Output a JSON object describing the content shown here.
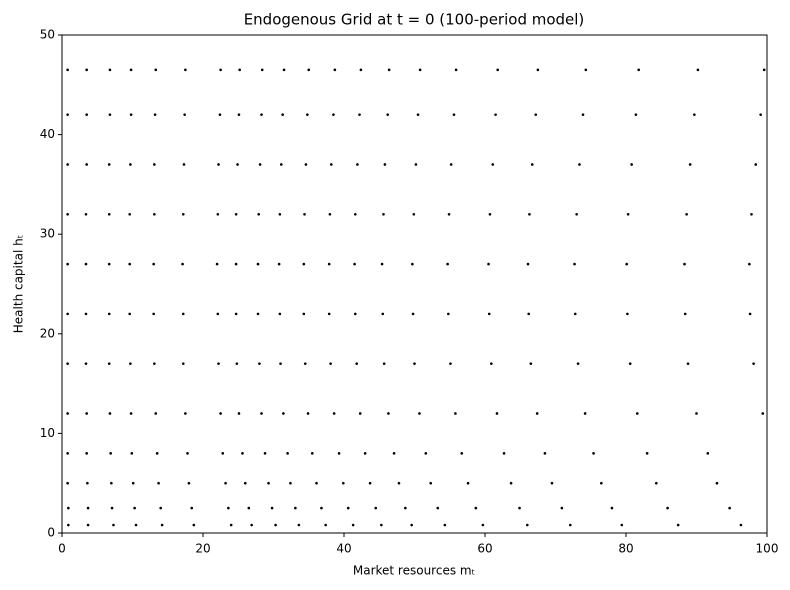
{
  "chart_data": {
    "type": "scatter",
    "title": "Endogenous Grid at t = 0 (100-period model)",
    "xlabel": "Market resources mₜ",
    "ylabel": "Health capital hₜ",
    "color": "#000000",
    "xlim": [
      0,
      100
    ],
    "ylim": [
      0,
      50
    ],
    "xticks": [
      0,
      20,
      40,
      60,
      80,
      100
    ],
    "yticks": [
      0,
      10,
      20,
      30,
      40,
      50
    ],
    "grid": false,
    "x": [
      99.6,
      99.1,
      98.4,
      97.8,
      97.5,
      97.6,
      98.1,
      99.4,
      90.2,
      89.7,
      89.1,
      88.6,
      88.3,
      88.4,
      88.8,
      90.0,
      91.6,
      92.9,
      94.7,
      96.3,
      81.8,
      81.4,
      80.8,
      80.3,
      80.1,
      80.2,
      80.6,
      81.6,
      83.0,
      84.3,
      85.9,
      87.4,
      74.3,
      73.9,
      73.4,
      73.0,
      72.7,
      72.8,
      73.2,
      74.2,
      75.4,
      76.5,
      78.0,
      79.4,
      67.5,
      67.2,
      66.7,
      66.3,
      66.1,
      66.2,
      66.5,
      67.4,
      68.5,
      69.5,
      70.9,
      72.1,
      61.8,
      61.5,
      61.1,
      60.7,
      60.5,
      60.6,
      60.9,
      61.7,
      62.7,
      63.7,
      64.9,
      66.0,
      55.9,
      55.6,
      55.2,
      54.9,
      54.7,
      54.8,
      55.1,
      55.8,
      56.7,
      57.6,
      58.7,
      59.7,
      50.8,
      50.5,
      50.2,
      49.9,
      49.7,
      49.8,
      50.0,
      50.7,
      51.6,
      52.3,
      53.3,
      54.3,
      46.4,
      46.2,
      45.8,
      45.6,
      45.4,
      45.5,
      45.7,
      46.3,
      47.1,
      47.8,
      48.7,
      49.6,
      42.4,
      42.2,
      41.9,
      41.6,
      41.5,
      41.6,
      41.8,
      42.3,
      43.0,
      43.7,
      44.5,
      45.3,
      38.7,
      38.5,
      38.2,
      38.0,
      37.9,
      37.9,
      38.1,
      38.6,
      39.3,
      39.9,
      40.6,
      41.3,
      35.0,
      34.8,
      34.6,
      34.4,
      34.3,
      34.3,
      34.5,
      34.9,
      35.5,
      36.1,
      36.8,
      37.4,
      31.5,
      31.3,
      31.1,
      30.9,
      30.8,
      30.9,
      31.0,
      31.4,
      32.0,
      32.4,
      33.1,
      33.6,
      28.4,
      28.3,
      28.1,
      27.9,
      27.8,
      27.8,
      28.0,
      28.3,
      28.8,
      29.3,
      29.8,
      30.3,
      25.2,
      25.1,
      24.9,
      24.7,
      24.7,
      24.7,
      24.8,
      25.1,
      25.6,
      26.0,
      26.5,
      26.9,
      22.5,
      22.4,
      22.2,
      22.1,
      22.0,
      22.1,
      22.2,
      22.5,
      22.8,
      23.2,
      23.6,
      24.0,
      17.5,
      17.4,
      17.3,
      17.2,
      17.1,
      17.2,
      17.2,
      17.5,
      17.8,
      18.0,
      18.4,
      18.7,
      13.3,
      13.2,
      13.1,
      13.1,
      13.0,
      13.0,
      13.1,
      13.3,
      13.5,
      13.7,
      14.0,
      14.2,
      9.8,
      9.8,
      9.7,
      9.6,
      9.6,
      9.6,
      9.7,
      9.8,
      9.9,
      10.1,
      10.3,
      10.5,
      6.8,
      6.8,
      6.7,
      6.7,
      6.7,
      6.7,
      6.7,
      6.8,
      6.9,
      7.0,
      7.1,
      7.3,
      3.5,
      3.5,
      3.5,
      3.4,
      3.4,
      3.4,
      3.4,
      3.5,
      3.5,
      3.6,
      3.7,
      3.7,
      0.8,
      0.8,
      0.8,
      0.8,
      0.8,
      0.8,
      0.8,
      0.8,
      0.8,
      0.8,
      0.9,
      0.9
    ],
    "y": [
      46.5,
      42,
      37,
      32,
      27,
      22,
      17,
      12,
      46.5,
      42,
      37,
      32,
      27,
      22,
      17,
      12,
      8,
      5,
      2.5,
      0.8,
      46.5,
      42,
      37,
      32,
      27,
      22,
      17,
      12,
      8,
      5,
      2.5,
      0.8,
      46.5,
      42,
      37,
      32,
      27,
      22,
      17,
      12,
      8,
      5,
      2.5,
      0.8,
      46.5,
      42,
      37,
      32,
      27,
      22,
      17,
      12,
      8,
      5,
      2.5,
      0.8,
      46.5,
      42,
      37,
      32,
      27,
      22,
      17,
      12,
      8,
      5,
      2.5,
      0.8,
      46.5,
      42,
      37,
      32,
      27,
      22,
      17,
      12,
      8,
      5,
      2.5,
      0.8,
      46.5,
      42,
      37,
      32,
      27,
      22,
      17,
      12,
      8,
      5,
      2.5,
      0.8,
      46.5,
      42,
      37,
      32,
      27,
      22,
      17,
      12,
      8,
      5,
      2.5,
      0.8,
      46.5,
      42,
      37,
      32,
      27,
      22,
      17,
      12,
      8,
      5,
      2.5,
      0.8,
      46.5,
      42,
      37,
      32,
      27,
      22,
      17,
      12,
      8,
      5,
      2.5,
      0.8,
      46.5,
      42,
      37,
      32,
      27,
      22,
      17,
      12,
      8,
      5,
      2.5,
      0.8,
      46.5,
      42,
      37,
      32,
      27,
      22,
      17,
      12,
      8,
      5,
      2.5,
      0.8,
      46.5,
      42,
      37,
      32,
      27,
      22,
      17,
      12,
      8,
      5,
      2.5,
      0.8,
      46.5,
      42,
      37,
      32,
      27,
      22,
      17,
      12,
      8,
      5,
      2.5,
      0.8,
      46.5,
      42,
      37,
      32,
      27,
      22,
      17,
      12,
      8,
      5,
      2.5,
      0.8,
      46.5,
      42,
      37,
      32,
      27,
      22,
      17,
      12,
      8,
      5,
      2.5,
      0.8,
      46.5,
      42,
      37,
      32,
      27,
      22,
      17,
      12,
      8,
      5,
      2.5,
      0.8,
      46.5,
      42,
      37,
      32,
      27,
      22,
      17,
      12,
      8,
      5,
      2.5,
      0.8,
      46.5,
      42,
      37,
      32,
      27,
      22,
      17,
      12,
      8,
      5,
      2.5,
      0.8,
      46.5,
      42,
      37,
      32,
      27,
      22,
      17,
      12,
      8,
      5,
      2.5,
      0.8,
      46.5,
      42,
      37,
      32,
      27,
      22,
      17,
      12,
      8,
      5,
      2.5,
      0.8
    ]
  }
}
